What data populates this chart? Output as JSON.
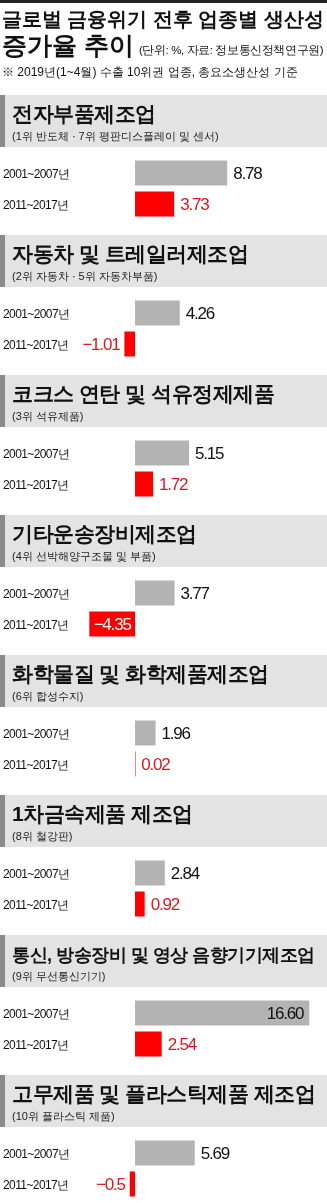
{
  "chart_data": [
    {
      "type": "bar",
      "orientation": "horizontal",
      "title": "전자부품제조업",
      "subtitle": "(1위 반도체 · 7위 평판디스플레이 및 센서)",
      "annotations": [
        "글로벌 금융위기 전후 업종별 생산성 증가율 추이",
        "(단위: %, 자료: 정보통신정책연구원)",
        "※ 2019년(1~4월) 수출 10위권 업종, 총요소생산성 기준"
      ],
      "categories": [
        "2001~2007년",
        "2011~2017년"
      ],
      "values": [
        8.78,
        3.73
      ],
      "value_labels": [
        "8.78",
        "3.73"
      ],
      "colors": [
        "#b3b3b3",
        "#ff0000"
      ]
    },
    {
      "type": "bar",
      "orientation": "horizontal",
      "title": "자동차 및 트레일러제조업",
      "subtitle": "(2위 자동차 · 5위 자동차부품)",
      "categories": [
        "2001~2007년",
        "2011~2017년"
      ],
      "values": [
        4.26,
        -1.01
      ],
      "value_labels": [
        "4.26",
        "−1.01"
      ],
      "colors": [
        "#b3b3b3",
        "#ff0000"
      ]
    },
    {
      "type": "bar",
      "orientation": "horizontal",
      "title": "코크스 연탄 및 석유정제제품",
      "subtitle": "(3위 석유제품)",
      "categories": [
        "2001~2007년",
        "2011~2017년"
      ],
      "values": [
        5.15,
        1.72
      ],
      "value_labels": [
        "5.15",
        "1.72"
      ],
      "colors": [
        "#b3b3b3",
        "#ff0000"
      ]
    },
    {
      "type": "bar",
      "orientation": "horizontal",
      "title": "기타운송장비제조업",
      "subtitle": "(4위 선박해양구조물 및 부품)",
      "categories": [
        "2001~2007년",
        "2011~2017년"
      ],
      "values": [
        3.77,
        -4.35
      ],
      "value_labels": [
        "3.77",
        "−4.35"
      ],
      "colors": [
        "#b3b3b3",
        "#ff0000"
      ]
    },
    {
      "type": "bar",
      "orientation": "horizontal",
      "title": "화학물질 및 화학제품제조업",
      "subtitle": "(6위 합성수지)",
      "categories": [
        "2001~2007년",
        "2011~2017년"
      ],
      "values": [
        1.96,
        0.02
      ],
      "value_labels": [
        "1.96",
        "0.02"
      ],
      "colors": [
        "#b3b3b3",
        "#ff0000"
      ]
    },
    {
      "type": "bar",
      "orientation": "horizontal",
      "title": "1차금속제품 제조업",
      "subtitle": "(8위 철강판)",
      "categories": [
        "2001~2007년",
        "2011~2017년"
      ],
      "values": [
        2.84,
        0.92
      ],
      "value_labels": [
        "2.84",
        "0.92"
      ],
      "colors": [
        "#b3b3b3",
        "#ff0000"
      ]
    },
    {
      "type": "bar",
      "orientation": "horizontal",
      "title": "통신, 방송장비 및 영상 음향기기제조업",
      "subtitle": "(9위 무선통신기기)",
      "categories": [
        "2001~2007년",
        "2011~2017년"
      ],
      "values": [
        16.6,
        2.54
      ],
      "value_labels": [
        "16.60",
        "2.54"
      ],
      "colors": [
        "#b3b3b3",
        "#ff0000"
      ]
    },
    {
      "type": "bar",
      "orientation": "horizontal",
      "title": "고무제품 및 플라스틱제품 제조업",
      "subtitle": "(10위 플라스틱 제품)",
      "categories": [
        "2001~2007년",
        "2011~2017년"
      ],
      "values": [
        5.69,
        -0.5
      ],
      "value_labels": [
        "5.69",
        "−0.5"
      ],
      "colors": [
        "#b3b3b3",
        "#ff0000"
      ]
    }
  ]
}
